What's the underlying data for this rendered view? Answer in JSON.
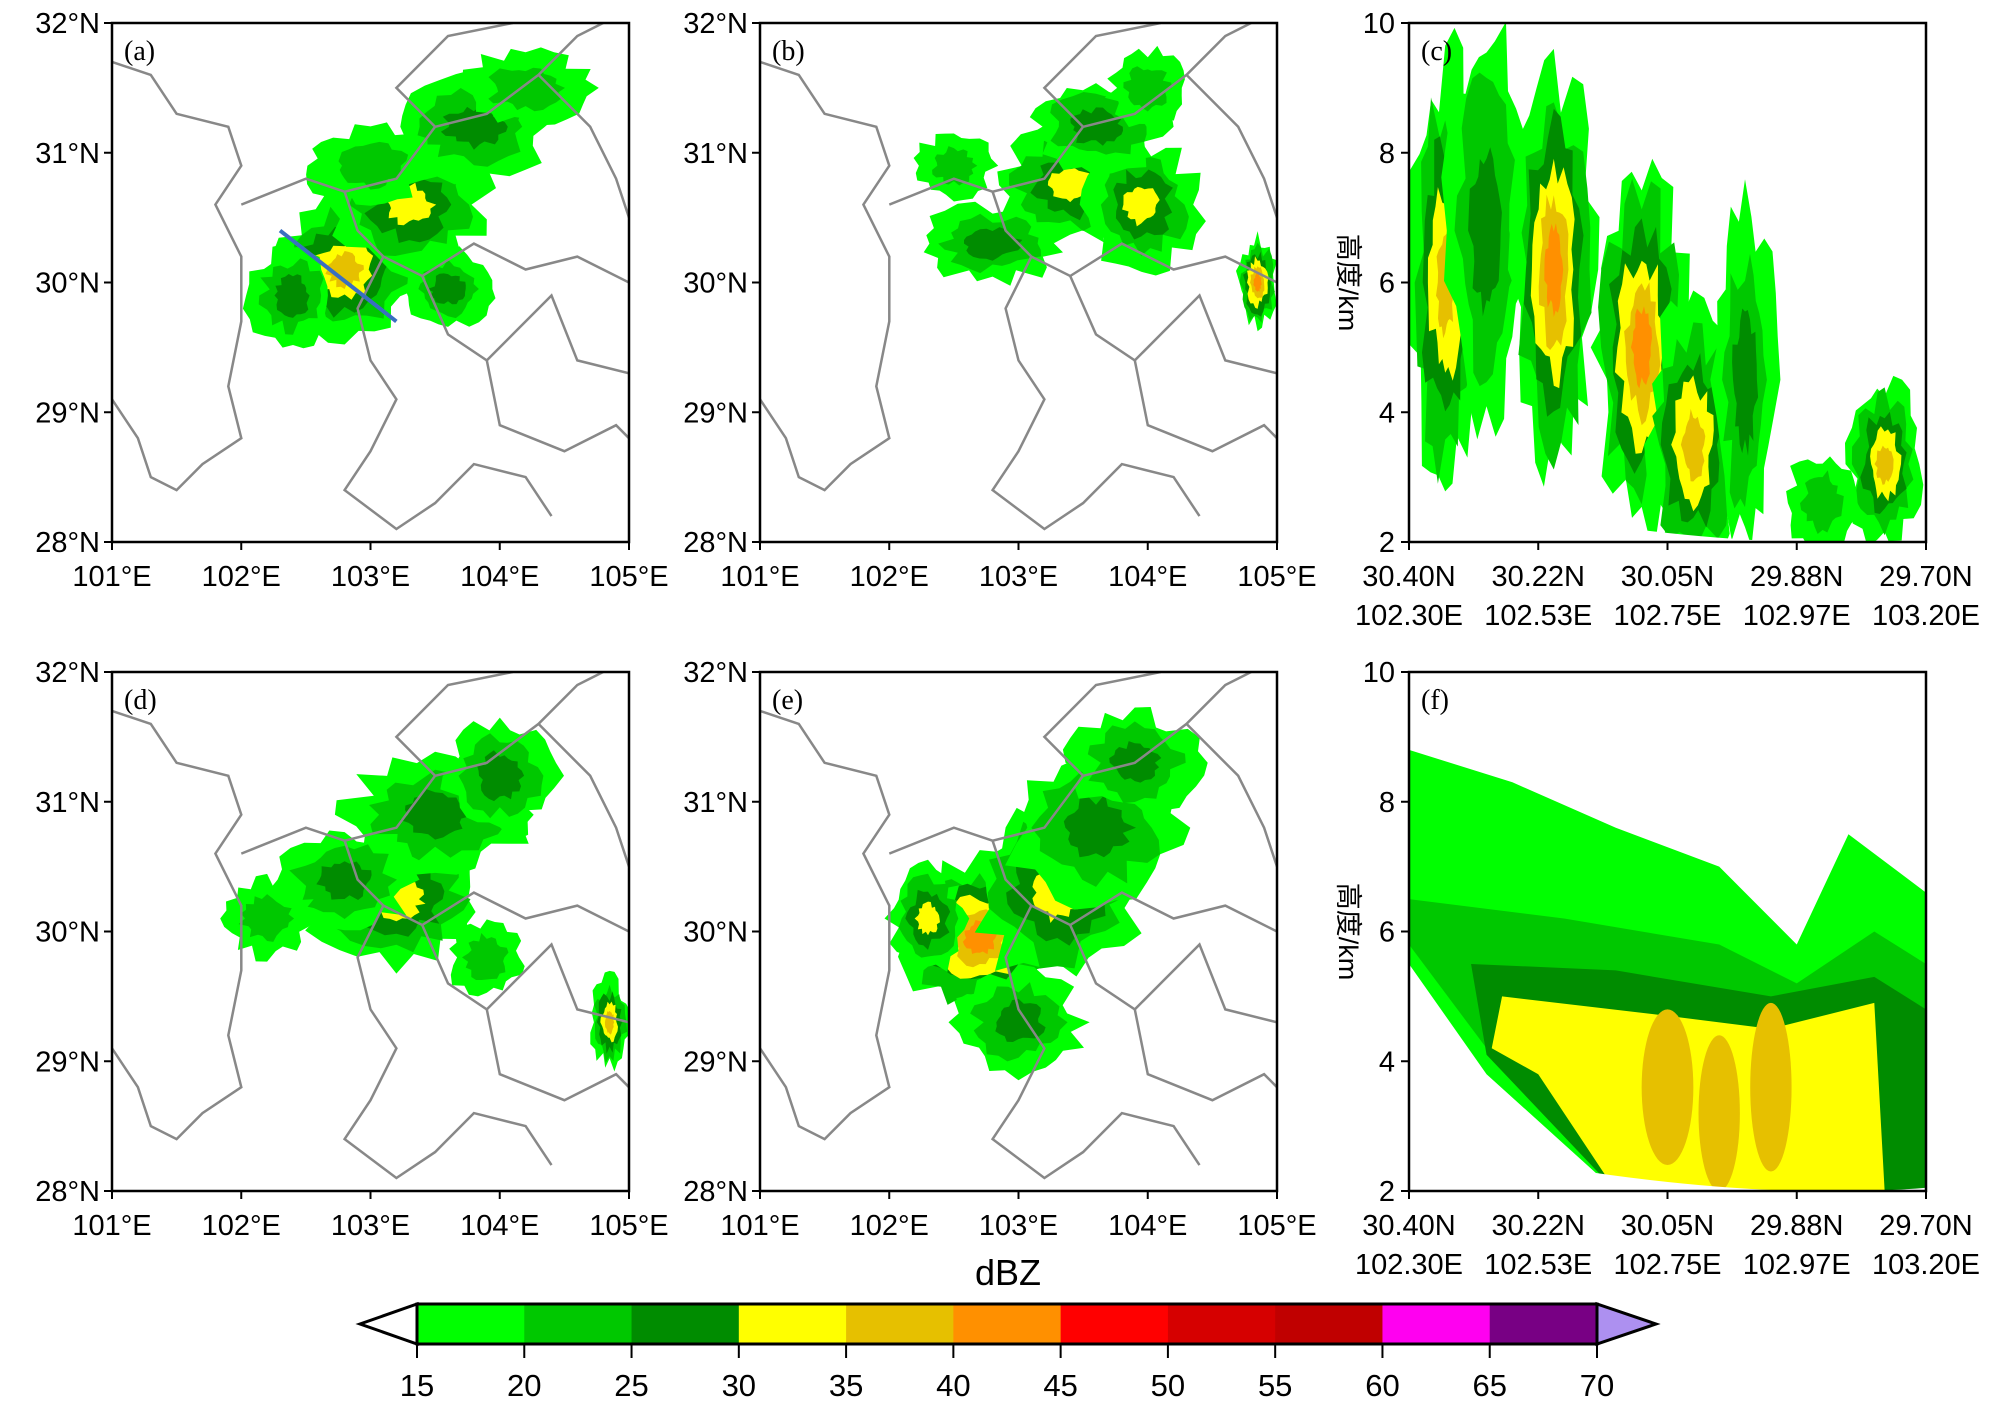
{
  "chart_data": [
    {
      "type": "heatmap",
      "panel": "(a)",
      "kind": "map",
      "xlim": [
        101,
        105
      ],
      "ylim": [
        28,
        32
      ],
      "xticks": [
        "101°E",
        "102°E",
        "103°E",
        "104°E",
        "105°E"
      ],
      "yticks": [
        "28°N",
        "29°N",
        "30°N",
        "31°N",
        "32°N"
      ],
      "annotation": "cross-section line from 102.30E 30.40N to 103.20E 29.70N"
    },
    {
      "type": "heatmap",
      "panel": "(b)",
      "kind": "map",
      "xlim": [
        101,
        105
      ],
      "ylim": [
        28,
        32
      ],
      "xticks": [
        "101°E",
        "102°E",
        "103°E",
        "104°E",
        "105°E"
      ],
      "yticks": [
        "28°N",
        "29°N",
        "30°N",
        "31°N",
        "32°N"
      ]
    },
    {
      "type": "heatmap",
      "panel": "(c)",
      "kind": "section",
      "ylim": [
        2,
        10
      ],
      "ylabel": "高度/km",
      "yticks": [
        "2",
        "4",
        "6",
        "8",
        "10"
      ],
      "xticks": [
        [
          "30.40N",
          "102.30E"
        ],
        [
          "30.22N",
          "102.53E"
        ],
        [
          "30.05N",
          "102.75E"
        ],
        [
          "29.88N",
          "102.97E"
        ],
        [
          "29.70N",
          "103.20E"
        ]
      ]
    },
    {
      "type": "heatmap",
      "panel": "(d)",
      "kind": "map",
      "xlim": [
        101,
        105
      ],
      "ylim": [
        28,
        32
      ],
      "xticks": [
        "101°E",
        "102°E",
        "103°E",
        "104°E",
        "105°E"
      ],
      "yticks": [
        "28°N",
        "29°N",
        "30°N",
        "31°N",
        "32°N"
      ]
    },
    {
      "type": "heatmap",
      "panel": "(e)",
      "kind": "map",
      "xlim": [
        101,
        105
      ],
      "ylim": [
        28,
        32
      ],
      "xticks": [
        "101°E",
        "102°E",
        "103°E",
        "104°E",
        "105°E"
      ],
      "yticks": [
        "28°N",
        "29°N",
        "30°N",
        "31°N",
        "32°N"
      ]
    },
    {
      "type": "heatmap",
      "panel": "(f)",
      "kind": "section",
      "ylim": [
        2,
        10
      ],
      "ylabel": "高度/km",
      "yticks": [
        "2",
        "4",
        "6",
        "8",
        "10"
      ],
      "xticks": [
        [
          "30.40N",
          "102.30E"
        ],
        [
          "30.22N",
          "102.53E"
        ],
        [
          "30.05N",
          "102.75E"
        ],
        [
          "29.88N",
          "102.97E"
        ],
        [
          "29.70N",
          "103.20E"
        ]
      ]
    }
  ],
  "colorbar": {
    "title": "dBZ",
    "levels": [
      "15",
      "20",
      "25",
      "30",
      "35",
      "40",
      "45",
      "50",
      "55",
      "60",
      "65",
      "70"
    ],
    "colors": [
      "#00ff00",
      "#00c800",
      "#008c00",
      "#ffff00",
      "#e6c000",
      "#ff9000",
      "#ff0000",
      "#d60000",
      "#c00000",
      "#ff00f0",
      "#780084",
      "#ad90f0"
    ]
  }
}
